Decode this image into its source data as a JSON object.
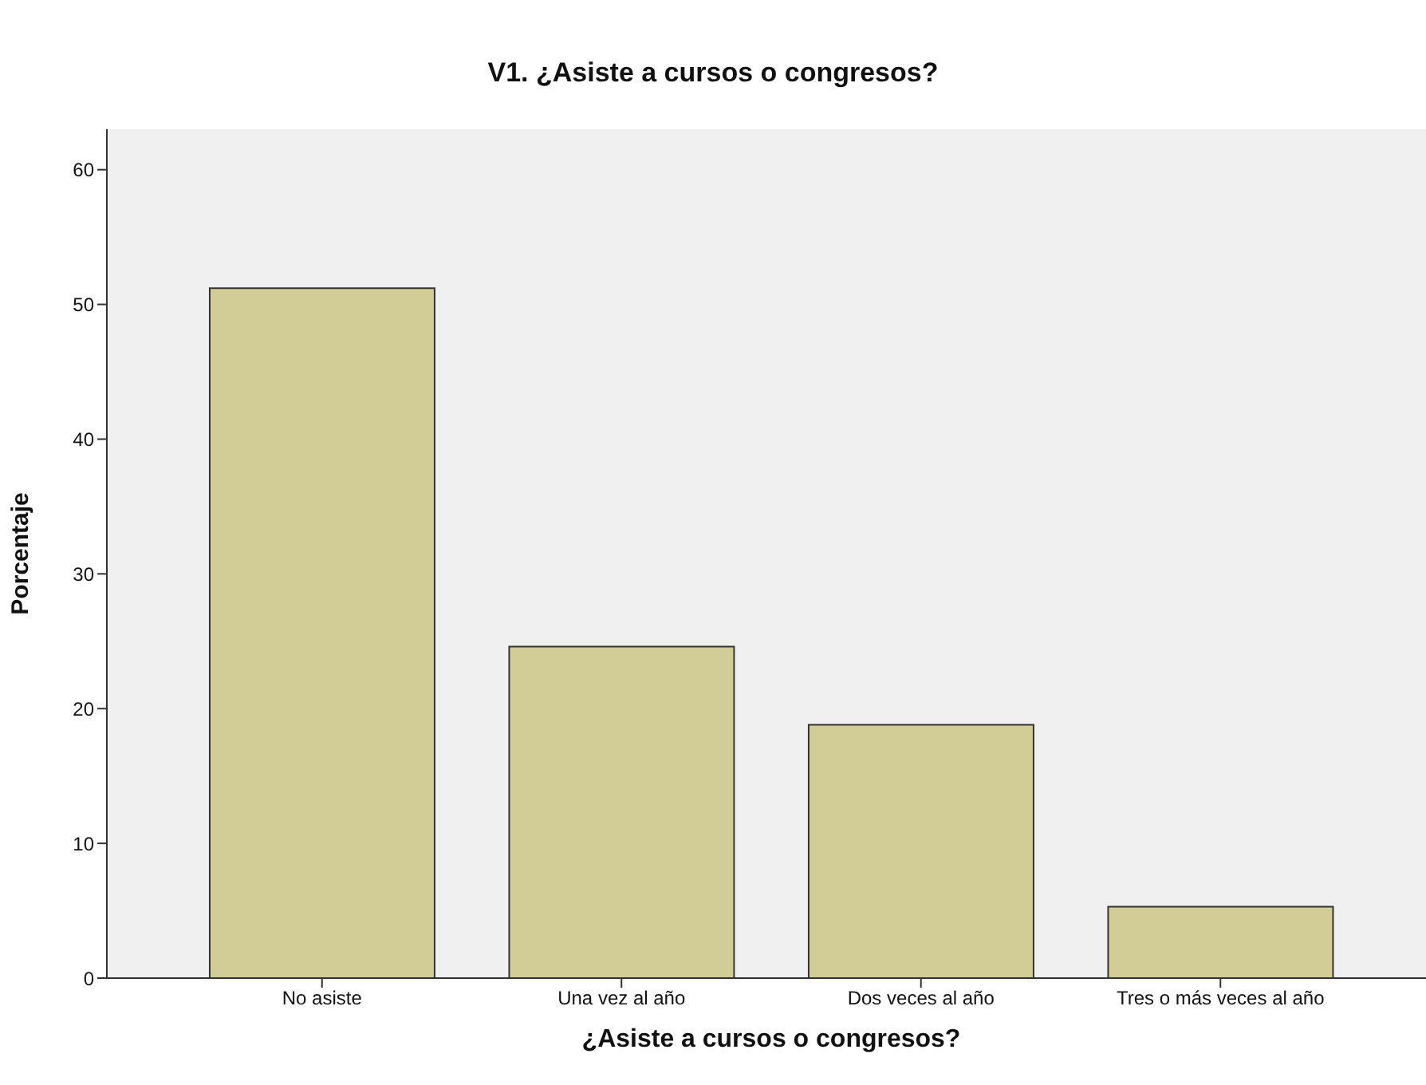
{
  "chart_data": {
    "type": "bar",
    "title": "V1. ¿Asiste a cursos o congresos?",
    "xlabel": "¿Asiste a cursos o congresos?",
    "ylabel": "Porcentaje",
    "categories": [
      "No asiste",
      "Una vez al año",
      "Dos veces al año",
      "Tres o más veces al año"
    ],
    "values": [
      51.2,
      24.6,
      18.8,
      5.3
    ],
    "color": "#d2cd96",
    "ylim": [
      0,
      63
    ],
    "yticks": [
      0,
      10,
      20,
      30,
      40,
      50,
      60
    ]
  }
}
